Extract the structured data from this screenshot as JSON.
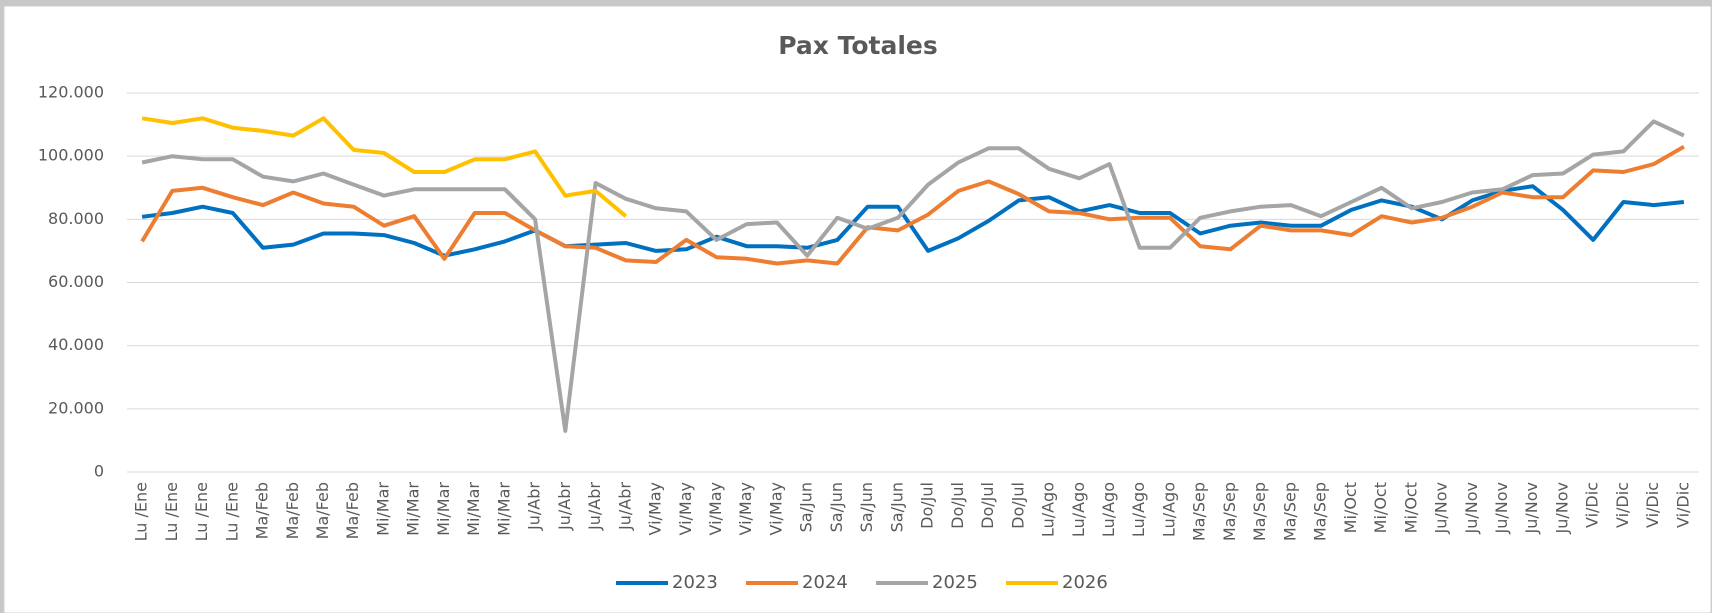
{
  "chart_data": {
    "type": "line",
    "title": "Pax Totales",
    "categories": [
      "Lu /Ene",
      "Lu /Ene",
      "Lu /Ene",
      "Lu /Ene",
      "Ma/Feb",
      "Ma/Feb",
      "Ma/Feb",
      "Ma/Feb",
      "Mi/Mar",
      "Mi/Mar",
      "Mi/Mar",
      "Mi/Mar",
      "Mi/Mar",
      "Ju/Abr",
      "Ju/Abr",
      "Ju/Abr",
      "Ju/Abr",
      "Vi/May",
      "Vi/May",
      "Vi/May",
      "Vi/May",
      "Vi/May",
      "Sa/Jun",
      "Sa/Jun",
      "Sa/Jun",
      "Sa/Jun",
      "Do/Jul",
      "Do/Jul",
      "Do/Jul",
      "Do/Jul",
      "Lu/Ago",
      "Lu/Ago",
      "Lu/Ago",
      "Lu/Ago",
      "Lu/Ago",
      "Ma/Sep",
      "Ma/Sep",
      "Ma/Sep",
      "Ma/Sep",
      "Ma/Sep",
      "Mi/Oct",
      "Mi/Oct",
      "Mi/Oct",
      "Ju/Nov",
      "Ju/Nov",
      "Ju/Nov",
      "Ju/Nov",
      "Ju/Nov",
      "Vi/Dic",
      "Vi/Dic",
      "Vi/Dic",
      "Vi/Dic"
    ],
    "series": [
      {
        "name": "2023",
        "color": "#0070c0",
        "values": [
          80800,
          82000,
          84000,
          82000,
          71000,
          72000,
          75500,
          75500,
          75000,
          72500,
          68500,
          70500,
          73000,
          76500,
          71500,
          72000,
          72500,
          70000,
          70500,
          74500,
          71500,
          71500,
          71000,
          73500,
          84000,
          84000,
          70000,
          74000,
          79500,
          86000,
          87000,
          82500,
          84500,
          82000,
          82000,
          75500,
          78000,
          79000,
          78000,
          78000,
          83000,
          86000,
          84000,
          80000,
          86000,
          89000,
          90500,
          83000,
          73500,
          85500,
          84500,
          85500
        ]
      },
      {
        "name": "2024",
        "color": "#ed7d31",
        "values": [
          73000,
          89000,
          90000,
          87000,
          84500,
          88500,
          85000,
          84000,
          78000,
          81000,
          67500,
          82000,
          82000,
          76500,
          71500,
          71000,
          67000,
          66500,
          73500,
          68000,
          67500,
          66000,
          67000,
          66000,
          77500,
          76500,
          81500,
          89000,
          92000,
          88000,
          82500,
          82000,
          80000,
          80500,
          80500,
          71500,
          70500,
          78000,
          76500,
          76500,
          75000,
          81000,
          79000,
          80500,
          84000,
          88500,
          87000,
          87000,
          95500,
          95000,
          97500,
          103000
        ]
      },
      {
        "name": "2025",
        "color": "#a5a5a5",
        "values": [
          98000,
          100000,
          99000,
          99000,
          93500,
          92000,
          94500,
          91000,
          87500,
          89500,
          89500,
          89500,
          89500,
          80000,
          13000,
          91500,
          86500,
          83500,
          82500,
          73500,
          78500,
          79000,
          68500,
          80500,
          77000,
          80500,
          91000,
          98000,
          102500,
          102500,
          96000,
          93000,
          97500,
          71000,
          71000,
          80500,
          82500,
          84000,
          84500,
          81000,
          85500,
          90000,
          83500,
          85500,
          88500,
          89500,
          94000,
          94500,
          100500,
          101500,
          111000,
          106500
        ]
      },
      {
        "name": "2026",
        "color": "#ffc000",
        "values": [
          112000,
          110500,
          112000,
          109000,
          108000,
          106500,
          112000,
          102000,
          101000,
          95000,
          95000,
          99000,
          99000,
          101500,
          87500,
          89000,
          81000,
          null,
          null,
          null,
          null,
          null,
          null,
          null,
          null,
          null,
          null,
          null,
          null,
          null,
          null,
          null,
          null,
          null,
          null,
          null,
          null,
          null,
          null,
          null,
          null,
          null,
          null,
          null,
          null,
          null,
          null,
          null,
          null,
          null,
          null,
          null
        ]
      }
    ],
    "ylim": [
      0,
      120000
    ],
    "yticks": [
      0,
      {
        "value": 20000,
        "label": "20.000"
      },
      {
        "value": 40000,
        "label": "40.000"
      },
      {
        "value": 60000,
        "label": "60.000"
      },
      {
        "value": 80000,
        "label": "80.000"
      },
      {
        "value": 100000,
        "label": "100.000"
      },
      {
        "value": 120000,
        "label": "120.000"
      }
    ],
    "grid": true,
    "legend": "bottom"
  }
}
